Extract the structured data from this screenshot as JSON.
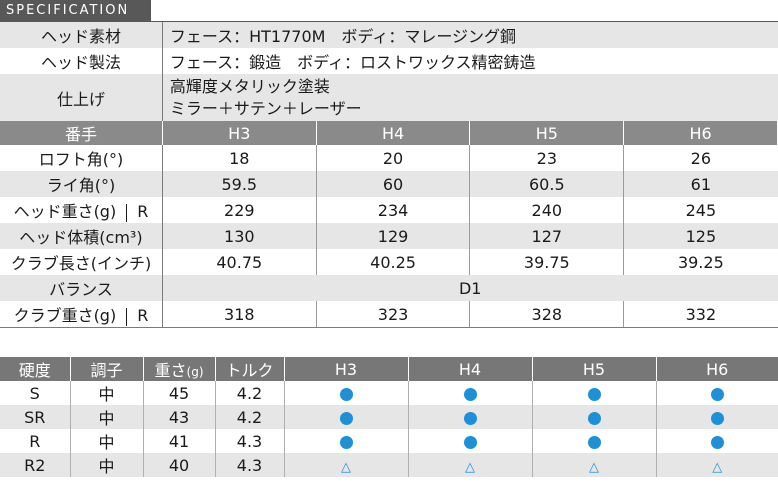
{
  "section_title": "SPECIFICATION",
  "head_material": {
    "label": "ヘッド素材",
    "value": "フェース：HT1770M　ボディ：マレージング鋼"
  },
  "head_process": {
    "label": "ヘッド製法",
    "value": "フェース：鍛造　ボディ：ロストワックス精密鋳造"
  },
  "finish": {
    "label": "仕上げ",
    "line1": "高輝度メタリック塗装",
    "line2": "ミラー＋サテン＋レーザー"
  },
  "spec_header": {
    "label": "番手",
    "cols": [
      "H3",
      "H4",
      "H5",
      "H6"
    ]
  },
  "loft": {
    "label": "ロフト角(°)",
    "values": [
      "18",
      "20",
      "23",
      "26"
    ]
  },
  "lie": {
    "label": "ライ角(°)",
    "values": [
      "59.5",
      "60",
      "60.5",
      "61"
    ]
  },
  "head_weight": {
    "label": "ヘッド重さ(g)",
    "sub": "R",
    "values": [
      "229",
      "234",
      "240",
      "245"
    ]
  },
  "head_volume": {
    "label": "ヘッド体積(cm³)",
    "values": [
      "130",
      "129",
      "127",
      "125"
    ]
  },
  "club_length": {
    "label": "クラブ長さ(インチ)",
    "values": [
      "40.75",
      "40.25",
      "39.75",
      "39.25"
    ]
  },
  "balance": {
    "label": "バランス",
    "value": "D1"
  },
  "club_weight": {
    "label": "クラブ重さ(g)",
    "sub": "R",
    "values": [
      "318",
      "323",
      "328",
      "332"
    ]
  },
  "flex_header": {
    "hardness": "硬度",
    "tone": "調子",
    "weight": "重さ",
    "weight_unit": "(g)",
    "torque": "トルク",
    "cols": [
      "H3",
      "H4",
      "H5",
      "H6"
    ]
  },
  "flex_rows": [
    {
      "hardness": "S",
      "tone": "中",
      "weight": "45",
      "torque": "4.2",
      "marks": [
        "dot",
        "dot",
        "dot",
        "dot"
      ]
    },
    {
      "hardness": "SR",
      "tone": "中",
      "weight": "43",
      "torque": "4.2",
      "marks": [
        "dot",
        "dot",
        "dot",
        "dot"
      ]
    },
    {
      "hardness": "R",
      "tone": "中",
      "weight": "41",
      "torque": "4.3",
      "marks": [
        "dot",
        "dot",
        "dot",
        "dot"
      ]
    },
    {
      "hardness": "R2",
      "tone": "中",
      "weight": "40",
      "torque": "4.3",
      "marks": [
        "△",
        "△",
        "△",
        "△"
      ]
    }
  ],
  "colors": {
    "header_dark": "#585858",
    "header_mid": "#8a8a8a",
    "row_gray": "#e6e6e6",
    "mark_blue": "#1e90d8"
  }
}
